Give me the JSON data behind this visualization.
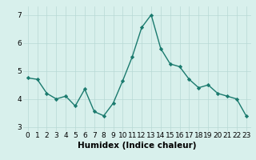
{
  "x": [
    0,
    1,
    2,
    3,
    4,
    5,
    6,
    7,
    8,
    9,
    10,
    11,
    12,
    13,
    14,
    15,
    16,
    17,
    18,
    19,
    20,
    21,
    22,
    23
  ],
  "y": [
    4.75,
    4.7,
    4.2,
    4.0,
    4.1,
    3.75,
    4.35,
    3.55,
    3.4,
    3.85,
    4.65,
    5.5,
    6.55,
    7.0,
    5.8,
    5.25,
    5.15,
    4.7,
    4.4,
    4.5,
    4.2,
    4.1,
    4.0,
    3.4
  ],
  "line_color": "#1a7a6e",
  "marker": "D",
  "marker_size": 2.2,
  "linewidth": 1.0,
  "xlabel": "Humidex (Indice chaleur)",
  "xlim": [
    -0.5,
    23.5
  ],
  "ylim": [
    2.85,
    7.3
  ],
  "yticks": [
    3,
    4,
    5,
    6,
    7
  ],
  "xticks": [
    0,
    1,
    2,
    3,
    4,
    5,
    6,
    7,
    8,
    9,
    10,
    11,
    12,
    13,
    14,
    15,
    16,
    17,
    18,
    19,
    20,
    21,
    22,
    23
  ],
  "bg_color": "#d8f0ec",
  "grid_color": "#b8d8d4",
  "tick_fontsize": 6.5,
  "xlabel_fontsize": 7.5
}
